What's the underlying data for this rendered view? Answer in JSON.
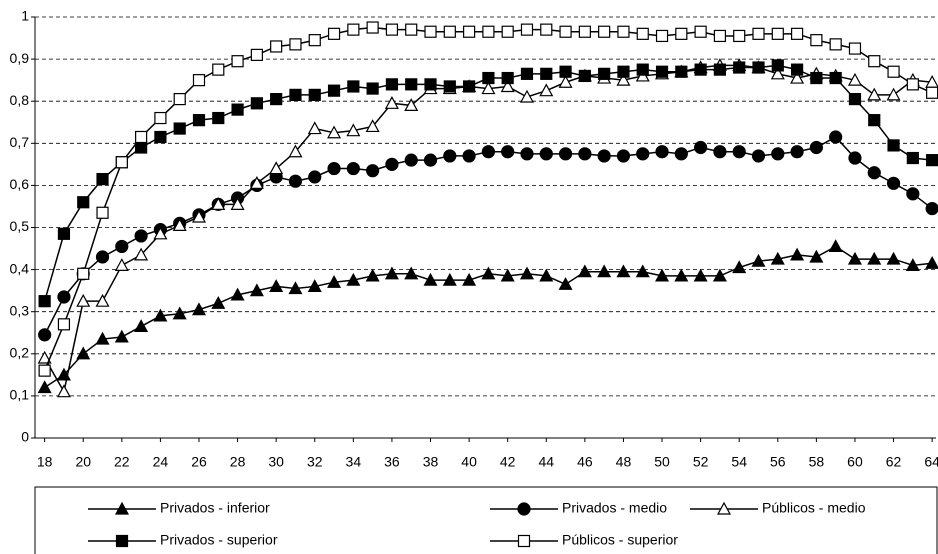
{
  "chart_data": {
    "type": "line",
    "x": [
      18,
      19,
      20,
      21,
      22,
      23,
      24,
      25,
      26,
      27,
      28,
      29,
      30,
      31,
      32,
      33,
      34,
      35,
      36,
      37,
      38,
      39,
      40,
      41,
      42,
      43,
      44,
      45,
      46,
      47,
      48,
      49,
      50,
      51,
      52,
      53,
      54,
      55,
      56,
      57,
      58,
      59,
      60,
      61,
      62,
      63,
      64
    ],
    "series": [
      {
        "name": "Privados - inferior",
        "color": "#000000",
        "marker": "triangle",
        "filled": true,
        "values": [
          0.12,
          0.15,
          0.2,
          0.235,
          0.24,
          0.265,
          0.29,
          0.295,
          0.305,
          0.32,
          0.34,
          0.35,
          0.36,
          0.355,
          0.36,
          0.37,
          0.375,
          0.385,
          0.39,
          0.39,
          0.375,
          0.375,
          0.375,
          0.39,
          0.385,
          0.39,
          0.385,
          0.365,
          0.395,
          0.395,
          0.395,
          0.395,
          0.385,
          0.385,
          0.385,
          0.385,
          0.405,
          0.42,
          0.425,
          0.435,
          0.43,
          0.455,
          0.425,
          0.425,
          0.425,
          0.41,
          0.415
        ]
      },
      {
        "name": "Privados - medio",
        "color": "#000000",
        "marker": "circle",
        "filled": true,
        "values": [
          0.245,
          0.335,
          0.39,
          0.43,
          0.455,
          0.48,
          0.495,
          0.51,
          0.53,
          0.555,
          0.57,
          0.6,
          0.62,
          0.61,
          0.62,
          0.64,
          0.64,
          0.635,
          0.65,
          0.66,
          0.66,
          0.67,
          0.67,
          0.68,
          0.68,
          0.675,
          0.675,
          0.675,
          0.675,
          0.67,
          0.67,
          0.675,
          0.68,
          0.675,
          0.69,
          0.68,
          0.68,
          0.67,
          0.675,
          0.68,
          0.69,
          0.715,
          0.665,
          0.63,
          0.605,
          0.58,
          0.545
        ]
      },
      {
        "name": "Públicos - medio",
        "color": "#000000",
        "marker": "triangle",
        "filled": false,
        "values": [
          0.19,
          0.11,
          0.325,
          0.325,
          0.41,
          0.435,
          0.485,
          0.505,
          0.525,
          0.555,
          0.555,
          0.605,
          0.64,
          0.68,
          0.735,
          0.725,
          0.73,
          0.74,
          0.795,
          0.79,
          0.83,
          0.83,
          0.835,
          0.83,
          0.835,
          0.81,
          0.825,
          0.845,
          0.86,
          0.855,
          0.85,
          0.86,
          0.865,
          0.87,
          0.88,
          0.885,
          0.885,
          0.88,
          0.865,
          0.855,
          0.865,
          0.86,
          0.85,
          0.815,
          0.815,
          0.85,
          0.845
        ]
      },
      {
        "name": "Privados - superior",
        "color": "#000000",
        "marker": "square",
        "filled": true,
        "values": [
          0.325,
          0.485,
          0.56,
          0.615,
          0.655,
          0.69,
          0.715,
          0.735,
          0.755,
          0.76,
          0.78,
          0.795,
          0.805,
          0.815,
          0.815,
          0.825,
          0.835,
          0.83,
          0.84,
          0.84,
          0.84,
          0.835,
          0.835,
          0.855,
          0.855,
          0.865,
          0.865,
          0.87,
          0.86,
          0.865,
          0.87,
          0.875,
          0.87,
          0.87,
          0.875,
          0.875,
          0.88,
          0.88,
          0.885,
          0.875,
          0.855,
          0.855,
          0.805,
          0.755,
          0.695,
          0.665,
          0.66
        ]
      },
      {
        "name": "Públicos - superior",
        "color": "#000000",
        "marker": "square",
        "filled": false,
        "values": [
          0.16,
          0.27,
          0.39,
          0.535,
          0.655,
          0.715,
          0.76,
          0.805,
          0.85,
          0.875,
          0.895,
          0.91,
          0.93,
          0.935,
          0.945,
          0.96,
          0.97,
          0.975,
          0.97,
          0.97,
          0.965,
          0.965,
          0.965,
          0.965,
          0.965,
          0.97,
          0.97,
          0.965,
          0.965,
          0.965,
          0.965,
          0.96,
          0.955,
          0.96,
          0.965,
          0.955,
          0.955,
          0.96,
          0.96,
          0.96,
          0.945,
          0.935,
          0.925,
          0.895,
          0.87,
          0.84,
          0.82
        ]
      }
    ],
    "xlim": [
      17.5,
      64.2
    ],
    "xticks": [
      18,
      20,
      22,
      24,
      26,
      28,
      30,
      32,
      34,
      36,
      38,
      40,
      42,
      44,
      46,
      48,
      50,
      52,
      54,
      56,
      58,
      60,
      62,
      64
    ],
    "ylim": [
      0,
      1
    ],
    "yticks": [
      0,
      {
        "value": 0.1,
        "label": "0,1"
      },
      {
        "value": 0.2,
        "label": "0,2"
      },
      {
        "value": 0.3,
        "label": "0,3"
      },
      {
        "value": 0.4,
        "label": "0,4"
      },
      {
        "value": 0.5,
        "label": "0,5"
      },
      {
        "value": 0.6,
        "label": "0,6"
      },
      {
        "value": 0.7,
        "label": "0,7"
      },
      {
        "value": 0.8,
        "label": "0,8"
      },
      {
        "value": 0.9,
        "label": "0,9"
      },
      1
    ],
    "grid": true,
    "legend": "bottom"
  }
}
